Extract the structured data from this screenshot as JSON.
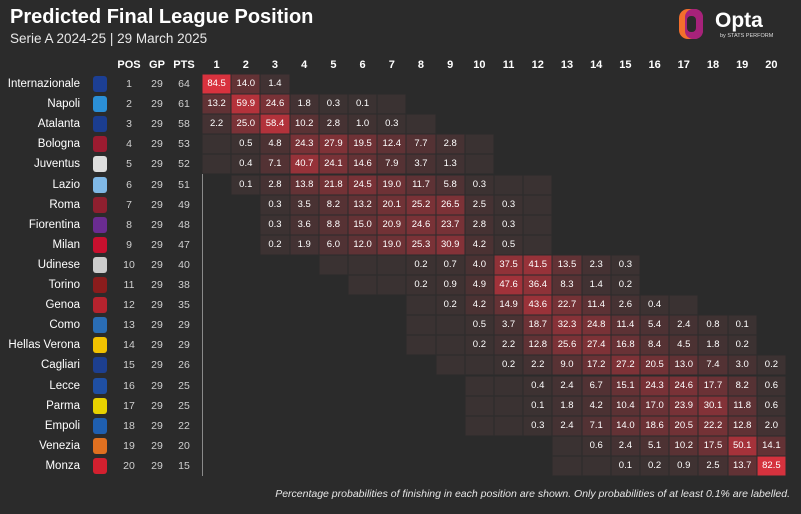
{
  "title": "Predicted Final League Position",
  "subtitle": "Serie A 2024-25 | 29 March 2025",
  "brand": {
    "name": "Opta",
    "tagline": "by STATS PERFORM",
    "colors": [
      "#f36f2c",
      "#a7227a",
      "#c2185b"
    ]
  },
  "footnote": "Percentage probabilities of finishing in each position are shown. Only probabilities of at least 0.1% are labelled.",
  "colors": {
    "background": "#2b2b2b",
    "low": "#3a3232",
    "high": "#d9323e"
  },
  "chart_data": {
    "type": "heatmap",
    "column_headers": [
      "POS",
      "GP",
      "PTS"
    ],
    "x": [
      "1",
      "2",
      "3",
      "4",
      "5",
      "6",
      "7",
      "8",
      "9",
      "10",
      "11",
      "12",
      "13",
      "14",
      "15",
      "16",
      "17",
      "18",
      "19",
      "20"
    ],
    "rows": [
      {
        "team": "Internazionale",
        "pos": "1",
        "gp": "29",
        "pts": "64",
        "crest": "#1c3f94",
        "start": 1,
        "end": 3,
        "values": [
          84.5,
          14.0,
          1.4
        ]
      },
      {
        "team": "Napoli",
        "pos": "2",
        "gp": "29",
        "pts": "61",
        "crest": "#2b8fd6",
        "start": 1,
        "end": 7,
        "values": [
          13.2,
          59.9,
          24.6,
          1.8,
          0.3,
          0.1,
          null
        ]
      },
      {
        "team": "Atalanta",
        "pos": "3",
        "gp": "29",
        "pts": "58",
        "crest": "#1b3d8f",
        "start": 1,
        "end": 8,
        "values": [
          2.2,
          25.0,
          58.4,
          10.2,
          2.8,
          1.0,
          0.3,
          null
        ]
      },
      {
        "team": "Bologna",
        "pos": "4",
        "gp": "29",
        "pts": "53",
        "crest": "#9b1b30",
        "start": 1,
        "end": 10,
        "values": [
          null,
          0.5,
          4.8,
          24.3,
          27.9,
          19.5,
          12.4,
          7.7,
          2.8,
          null
        ]
      },
      {
        "team": "Juventus",
        "pos": "5",
        "gp": "29",
        "pts": "52",
        "crest": "#dddddd",
        "start": 1,
        "end": 10,
        "values": [
          null,
          0.4,
          7.1,
          40.7,
          24.1,
          14.6,
          7.9,
          3.7,
          1.3,
          null
        ]
      },
      {
        "team": "Lazio",
        "pos": "6",
        "gp": "29",
        "pts": "51",
        "crest": "#7fb8e6",
        "start": 2,
        "end": 12,
        "values": [
          0.1,
          2.8,
          13.8,
          21.8,
          24.5,
          19.0,
          11.7,
          5.8,
          0.3,
          null,
          null
        ]
      },
      {
        "team": "Roma",
        "pos": "7",
        "gp": "29",
        "pts": "49",
        "crest": "#8e1f2f",
        "start": 3,
        "end": 12,
        "values": [
          0.3,
          3.5,
          8.2,
          13.2,
          20.1,
          25.2,
          26.5,
          2.5,
          0.3,
          null
        ]
      },
      {
        "team": "Fiorentina",
        "pos": "8",
        "gp": "29",
        "pts": "48",
        "crest": "#6a2c91",
        "start": 3,
        "end": 12,
        "values": [
          0.3,
          3.6,
          8.8,
          15.0,
          20.9,
          24.6,
          23.7,
          2.8,
          0.3,
          null
        ]
      },
      {
        "team": "Milan",
        "pos": "9",
        "gp": "29",
        "pts": "47",
        "crest": "#c8102e",
        "start": 3,
        "end": 12,
        "values": [
          0.2,
          1.9,
          6.0,
          12.0,
          19.0,
          25.3,
          30.9,
          4.2,
          0.5,
          null
        ]
      },
      {
        "team": "Udinese",
        "pos": "10",
        "gp": "29",
        "pts": "40",
        "crest": "#cccccc",
        "start": 5,
        "end": 15,
        "values": [
          null,
          null,
          null,
          0.2,
          0.7,
          4.0,
          37.5,
          41.5,
          13.5,
          2.3,
          0.3
        ]
      },
      {
        "team": "Torino",
        "pos": "11",
        "gp": "29",
        "pts": "38",
        "crest": "#8a1c1c",
        "start": 6,
        "end": 15,
        "values": [
          null,
          null,
          0.2,
          0.9,
          4.9,
          47.6,
          36.4,
          8.3,
          1.4,
          0.2
        ]
      },
      {
        "team": "Genoa",
        "pos": "12",
        "gp": "29",
        "pts": "35",
        "crest": "#b5232e",
        "start": 8,
        "end": 17,
        "values": [
          null,
          0.2,
          4.2,
          14.9,
          43.6,
          22.7,
          11.4,
          2.6,
          0.4,
          null
        ]
      },
      {
        "team": "Como",
        "pos": "13",
        "gp": "29",
        "pts": "29",
        "crest": "#2a6db5",
        "start": 8,
        "end": 19,
        "values": [
          null,
          null,
          0.5,
          3.7,
          18.7,
          32.3,
          24.8,
          11.4,
          5.4,
          2.4,
          0.8,
          0.1
        ]
      },
      {
        "team": "Hellas Verona",
        "pos": "14",
        "gp": "29",
        "pts": "29",
        "crest": "#f2c200",
        "start": 8,
        "end": 19,
        "values": [
          null,
          null,
          0.2,
          2.2,
          12.8,
          25.6,
          27.4,
          16.8,
          8.4,
          4.5,
          1.8,
          0.2
        ]
      },
      {
        "team": "Cagliari",
        "pos": "15",
        "gp": "29",
        "pts": "26",
        "crest": "#1d3f8f",
        "start": 9,
        "end": 20,
        "values": [
          null,
          null,
          0.2,
          2.2,
          9.0,
          17.2,
          27.2,
          20.5,
          13.0,
          7.4,
          3.0,
          0.2
        ]
      },
      {
        "team": "Lecce",
        "pos": "16",
        "gp": "29",
        "pts": "25",
        "crest": "#1f4fa3",
        "start": 10,
        "end": 20,
        "values": [
          null,
          null,
          0.4,
          2.4,
          6.7,
          15.1,
          24.3,
          24.6,
          17.7,
          8.2,
          0.6
        ]
      },
      {
        "team": "Parma",
        "pos": "17",
        "gp": "29",
        "pts": "25",
        "crest": "#e8d200",
        "start": 10,
        "end": 20,
        "values": [
          null,
          null,
          0.1,
          1.8,
          4.2,
          10.4,
          17.0,
          23.9,
          30.1,
          11.8,
          0.6
        ]
      },
      {
        "team": "Empoli",
        "pos": "18",
        "gp": "29",
        "pts": "22",
        "crest": "#1f5fb0",
        "start": 10,
        "end": 20,
        "values": [
          null,
          null,
          0.3,
          2.4,
          7.1,
          14.0,
          18.6,
          20.5,
          22.2,
          12.8,
          2.0
        ]
      },
      {
        "team": "Venezia",
        "pos": "19",
        "gp": "29",
        "pts": "20",
        "crest": "#e07020",
        "start": 13,
        "end": 20,
        "values": [
          null,
          0.6,
          2.4,
          5.1,
          10.2,
          17.5,
          50.1,
          14.1
        ]
      },
      {
        "team": "Monza",
        "pos": "20",
        "gp": "29",
        "pts": "15",
        "crest": "#d3202f",
        "start": 13,
        "end": 20,
        "values": [
          null,
          null,
          0.1,
          0.2,
          0.9,
          2.5,
          13.7,
          82.5
        ]
      }
    ]
  }
}
